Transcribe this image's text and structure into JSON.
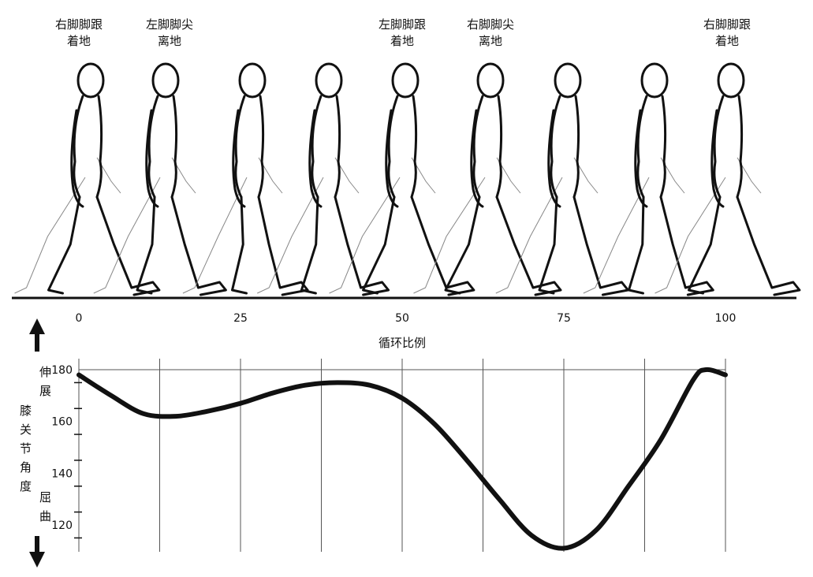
{
  "events": [
    {
      "lines": [
        "右脚脚跟",
        "着地"
      ],
      "x": 0
    },
    {
      "lines": [
        "左脚脚尖",
        "离地"
      ],
      "x": 10
    },
    {
      "lines": [
        "左脚脚跟",
        "着地"
      ],
      "x": 50
    },
    {
      "lines": [
        "右脚脚尖",
        "离地"
      ],
      "x": 62
    },
    {
      "lines": [
        "右脚脚跟",
        "着地"
      ],
      "x": 100
    }
  ],
  "figure_count": 9,
  "chart_data": {
    "type": "line",
    "title": "",
    "xlabel": "循环比例",
    "ylabel": "膝关节角度",
    "ylabel_top": "伸展",
    "ylabel_bottom": "屈曲",
    "xlim": [
      0,
      100
    ],
    "ylim": [
      110,
      184
    ],
    "xticks": [
      0,
      25,
      50,
      75,
      100
    ],
    "yticks": [
      120,
      140,
      160,
      180
    ],
    "x": [
      0,
      5,
      10,
      15,
      20,
      25,
      30,
      35,
      40,
      45,
      50,
      55,
      60,
      65,
      70,
      75,
      80,
      85,
      90,
      95,
      97,
      100
    ],
    "y": [
      178,
      170,
      163,
      162,
      164,
      167,
      171,
      174,
      175,
      174,
      169,
      159,
      145,
      130,
      116,
      111,
      118,
      135,
      153,
      176,
      180,
      178
    ],
    "grid": true,
    "line_color": "#111111"
  }
}
